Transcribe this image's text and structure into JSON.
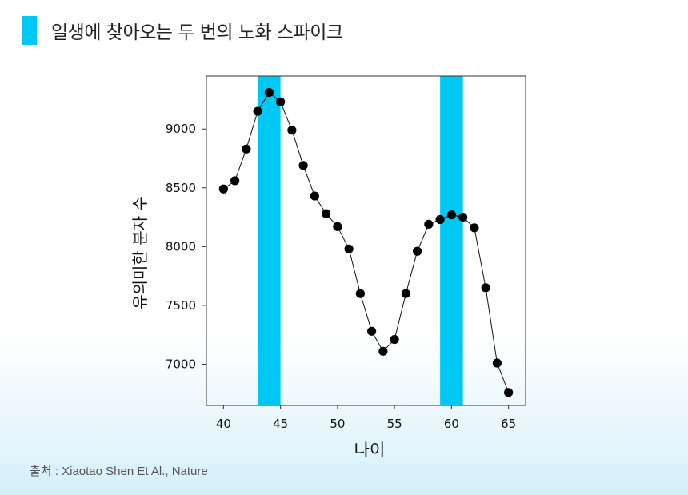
{
  "header": {
    "title": "일생에 찾아오는 두 번의 노화 스파이크",
    "accent_color": "#00c8f5"
  },
  "source": "출처 : Xiaotao Shen Et Al., Nature",
  "chart_data": {
    "type": "scatter-line",
    "title": "일생에 찾아오는 두 번의 노화 스파이크",
    "xlabel": "나이",
    "ylabel": "유의미한 분자 수",
    "xlim": [
      38.5,
      66.5
    ],
    "ylim": [
      6650,
      9450
    ],
    "xticks": [
      40,
      45,
      50,
      55,
      60,
      65
    ],
    "yticks": [
      7000,
      7500,
      8000,
      8500,
      9000
    ],
    "highlight_bands": [
      [
        43,
        45
      ],
      [
        59,
        61
      ]
    ],
    "band_color": "#00c8f5",
    "marker_color": "#000000",
    "series": [
      {
        "name": "유의미한 분자 수",
        "x": [
          40,
          41,
          42,
          43,
          44,
          45,
          46,
          47,
          48,
          49,
          50,
          51,
          52,
          53,
          54,
          55,
          56,
          57,
          58,
          59,
          60,
          61,
          62,
          63,
          64,
          65
        ],
        "y": [
          8490,
          8560,
          8830,
          9150,
          9310,
          9230,
          8990,
          8690,
          8430,
          8280,
          8170,
          7980,
          7600,
          7280,
          7110,
          7210,
          7600,
          7960,
          8190,
          8230,
          8270,
          8250,
          8160,
          7650,
          7010,
          6760
        ]
      }
    ]
  }
}
